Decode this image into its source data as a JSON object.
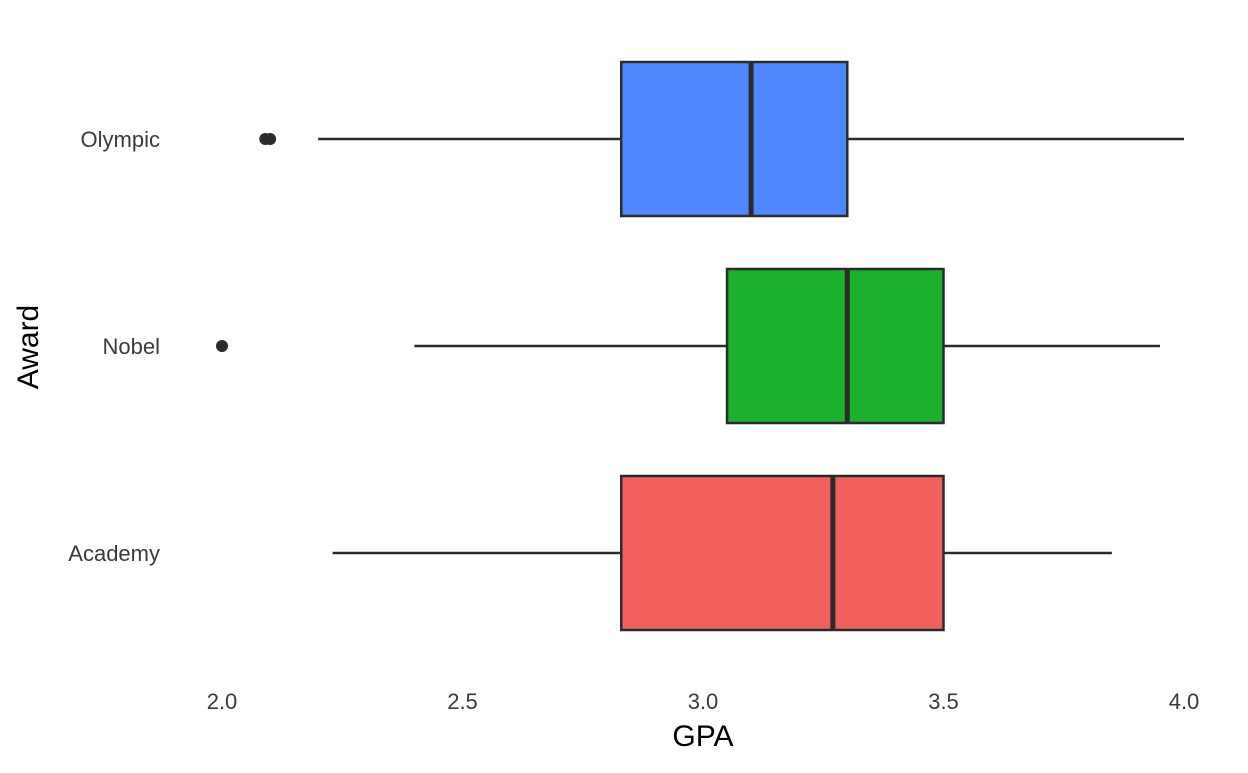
{
  "chart_data": {
    "type": "boxplot",
    "orientation": "horizontal",
    "title": "",
    "xlabel": "GPA",
    "ylabel": "Award",
    "xlim": [
      1.96,
      4.02
    ],
    "x_ticks": [
      "2.0",
      "2.5",
      "3.0",
      "3.5",
      "4.0"
    ],
    "categories": [
      "Olympic",
      "Nobel",
      "Academy"
    ],
    "grid": false,
    "legend": "none",
    "colors": {
      "Olympic": "#5087FF",
      "Nobel": "#19B12D",
      "Academy": "#F2605C",
      "outline": "#2b2b2b"
    },
    "series": [
      {
        "category": "Olympic",
        "whisker_low": 2.2,
        "q1": 2.83,
        "median": 3.1,
        "q3": 3.3,
        "whisker_high": 4.0,
        "outliers": [
          2.09,
          2.1
        ]
      },
      {
        "category": "Nobel",
        "whisker_low": 2.4,
        "q1": 3.05,
        "median": 3.3,
        "q3": 3.5,
        "whisker_high": 3.95,
        "outliers": [
          2.0
        ]
      },
      {
        "category": "Academy",
        "whisker_low": 2.23,
        "q1": 2.83,
        "median": 3.27,
        "q3": 3.5,
        "whisker_high": 3.85,
        "outliers": []
      }
    ]
  }
}
